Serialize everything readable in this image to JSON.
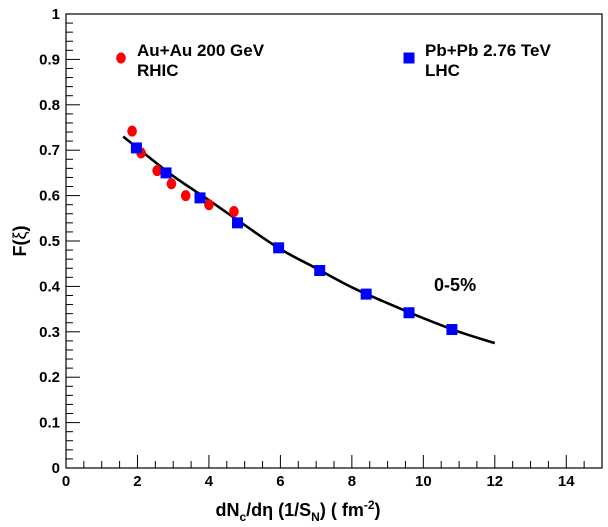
{
  "chart_data": {
    "type": "scatter",
    "xlabel": {
      "parts": [
        "dN",
        "c",
        "/dη (1/S",
        "N",
        ") ( fm",
        "-2",
        ")"
      ],
      "styles": [
        "base",
        "sub",
        "base",
        "sub",
        "base",
        "sup",
        "base"
      ]
    },
    "ylabel": {
      "parts": [
        "F(",
        "ξ",
        ")"
      ]
    },
    "xlim": [
      0,
      15
    ],
    "ylim": [
      0,
      1
    ],
    "xticks": [
      0,
      2,
      4,
      6,
      8,
      10,
      12,
      14
    ],
    "yticks": [
      0,
      0.1,
      0.2,
      0.3,
      0.4,
      0.5,
      0.6,
      0.7,
      0.8,
      0.9,
      1
    ],
    "grid": false,
    "legend_position": "top",
    "series": [
      {
        "name": "Au+Au 200 GeV",
        "name_line2": "RHIC",
        "marker": "circle",
        "color": "#ff0000",
        "x": [
          1.85,
          2.1,
          2.55,
          2.95,
          3.35,
          4.0,
          4.7
        ],
        "y": [
          0.742,
          0.694,
          0.655,
          0.626,
          0.6,
          0.58,
          0.565
        ]
      },
      {
        "name": "Pb+Pb 2.76 TeV",
        "name_line2": "LHC",
        "marker": "square",
        "color": "#0000ff",
        "x": [
          1.97,
          2.8,
          3.75,
          4.8,
          5.95,
          7.1,
          8.4,
          9.6,
          10.8
        ],
        "y": [
          0.705,
          0.65,
          0.595,
          0.54,
          0.485,
          0.435,
          0.383,
          0.342,
          0.305
        ]
      },
      {
        "name": "",
        "marker": "line",
        "color": "#000000",
        "x": [
          1.6,
          2.0,
          3.0,
          4.0,
          5.0,
          6.0,
          7.0,
          8.0,
          9.0,
          10.0,
          11.0,
          12.0
        ],
        "y": [
          0.73,
          0.705,
          0.643,
          0.59,
          0.535,
          0.482,
          0.44,
          0.398,
          0.363,
          0.33,
          0.3,
          0.275
        ]
      }
    ],
    "annotation": {
      "text": "0-5%",
      "x": 10.3,
      "y": 0.39
    }
  }
}
